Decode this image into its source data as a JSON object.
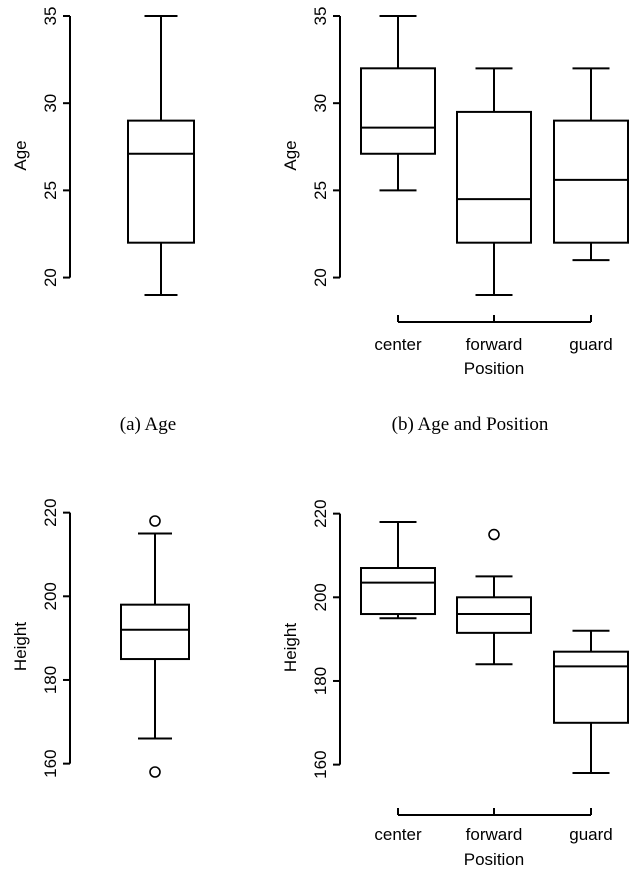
{
  "chart_data": [
    {
      "type": "box",
      "panel": "a",
      "ylabel": "Age",
      "ylim": [
        19,
        35
      ],
      "yticks": [
        20,
        25,
        30,
        35
      ],
      "categories": [],
      "xlabel": "",
      "boxes": [
        {
          "min": 19,
          "q1": 22,
          "median": 27.1,
          "q3": 29,
          "max": 35,
          "outliers": []
        }
      ],
      "caption": "(a) Age"
    },
    {
      "type": "box",
      "panel": "b",
      "ylabel": "Age",
      "ylim": [
        19,
        35
      ],
      "yticks": [
        20,
        25,
        30,
        35
      ],
      "categories": [
        "center",
        "forward",
        "guard"
      ],
      "xlabel": "Position",
      "boxes": [
        {
          "min": 25,
          "q1": 27.1,
          "median": 28.6,
          "q3": 32,
          "max": 35,
          "outliers": []
        },
        {
          "min": 19,
          "q1": 22,
          "median": 24.5,
          "q3": 29.5,
          "max": 32,
          "outliers": []
        },
        {
          "min": 21,
          "q1": 22,
          "median": 25.6,
          "q3": 29,
          "max": 32,
          "outliers": []
        }
      ],
      "caption": "(b) Age and Position"
    },
    {
      "type": "box",
      "panel": "c",
      "ylabel": "Height",
      "ylim": [
        158,
        218
      ],
      "yticks": [
        160,
        180,
        200,
        220
      ],
      "categories": [],
      "xlabel": "",
      "boxes": [
        {
          "min": 166,
          "q1": 185,
          "median": 192,
          "q3": 198,
          "max": 215,
          "outliers": [
            158,
            218
          ]
        }
      ]
    },
    {
      "type": "box",
      "panel": "d",
      "ylabel": "Height",
      "ylim": [
        158,
        218
      ],
      "yticks": [
        160,
        180,
        200,
        220
      ],
      "categories": [
        "center",
        "forward",
        "guard"
      ],
      "xlabel": "Position",
      "boxes": [
        {
          "min": 195,
          "q1": 196,
          "median": 203.5,
          "q3": 207,
          "max": 218,
          "outliers": []
        },
        {
          "min": 184,
          "q1": 191.5,
          "median": 196,
          "q3": 200,
          "max": 205,
          "outliers": [
            215
          ]
        },
        {
          "min": 158,
          "q1": 170,
          "median": 183.5,
          "q3": 187,
          "max": 192,
          "outliers": []
        }
      ]
    }
  ]
}
